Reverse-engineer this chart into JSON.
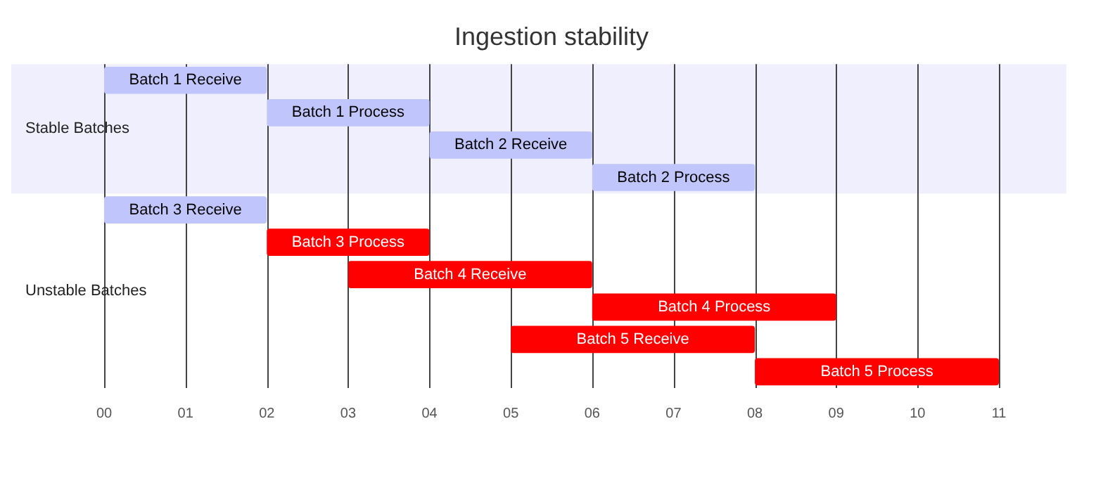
{
  "chart_data": {
    "type": "bar",
    "orientation": "horizontal",
    "title": "Ingestion stability",
    "categories": [
      "Batch 1 Receive",
      "Batch 1 Process",
      "Batch 2 Receive",
      "Batch 2 Process",
      "Batch 3 Receive",
      "Batch 3 Process",
      "Batch 4 Receive",
      "Batch 4 Process",
      "Batch 5 Receive",
      "Batch 5 Process"
    ],
    "base": [
      0,
      2,
      4,
      6,
      0,
      2,
      3,
      6,
      5,
      8
    ],
    "values": [
      2,
      2,
      2,
      2,
      2,
      2,
      3,
      3,
      3,
      3
    ],
    "colors": [
      "#c0c6fb",
      "#c0c6fb",
      "#c0c6fb",
      "#c0c6fb",
      "#c0c6fb",
      "#ff0000",
      "#ff0000",
      "#ff0000",
      "#ff0000",
      "#ff0000"
    ],
    "xlim": [
      0,
      11
    ],
    "xticks": [
      {
        "value": 0,
        "label": "00"
      },
      {
        "value": 1,
        "label": "01"
      },
      {
        "value": 2,
        "label": "02"
      },
      {
        "value": 3,
        "label": "03"
      },
      {
        "value": 4,
        "label": "04"
      },
      {
        "value": 5,
        "label": "05"
      },
      {
        "value": 6,
        "label": "06"
      },
      {
        "value": 7,
        "label": "07"
      },
      {
        "value": 8,
        "label": "08"
      },
      {
        "value": 9,
        "label": "09"
      },
      {
        "value": 10,
        "label": "10"
      },
      {
        "value": 11,
        "label": "11"
      }
    ],
    "bands": [
      {
        "axis": "y",
        "from": "Batch 1 Receive",
        "to": "Batch 2 Process",
        "label": "Stable Batches",
        "color": "#efeffd"
      }
    ],
    "annotations": [
      "Unstable Batches"
    ],
    "grid": "x",
    "tick_labels": "x",
    "legend": false
  }
}
